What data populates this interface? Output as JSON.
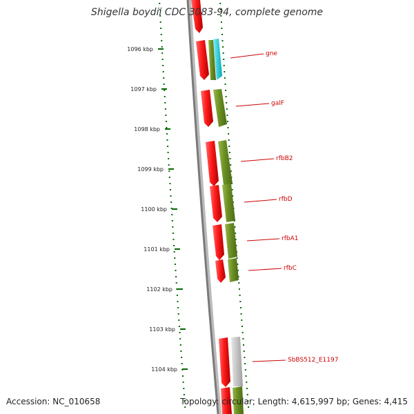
{
  "title": "Shigella boydii CDC 3083-94, complete genome",
  "footer": {
    "accession": "Accession: NC_010658",
    "topology": "Topology: circular; Length: 4,615,997 bp; Genes: 4,415"
  },
  "ticks": [
    "1096 kbp",
    "1097 kbp",
    "1098 kbp",
    "1099 kbp",
    "1100 kbp",
    "1101 kbp",
    "1102 kbp",
    "1103 kbp",
    "1104 kbp"
  ],
  "gene_labels": [
    "gne",
    "galF",
    "rfbB2",
    "rfbD",
    "rfbA1",
    "rfbC",
    "SbBS512_E1197"
  ],
  "colors": {
    "backbone": "#777777",
    "forward_feature": "#e00000",
    "cds": "#6b8e23",
    "cyan_feature": "#00c8d8",
    "gray_feature": "#bbbbbb",
    "tick": "#006600",
    "label": "#cc0000"
  }
}
